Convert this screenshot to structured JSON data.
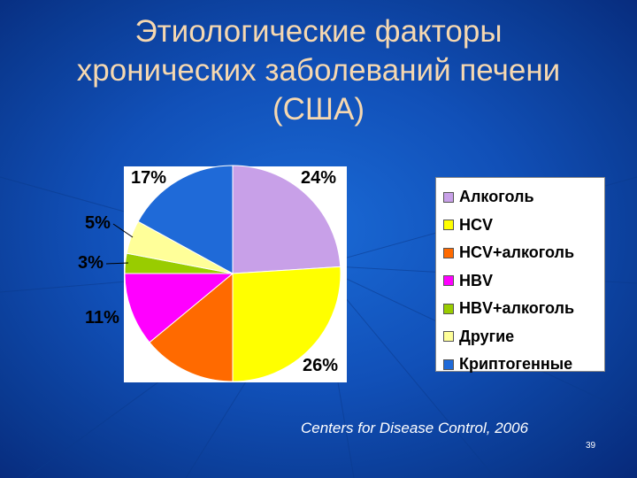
{
  "slide": {
    "title_lines": [
      "Этиологические факторы",
      "хронических заболеваний печени",
      "(США)"
    ],
    "source": "Centers for Disease Control, 2006",
    "page_number": "39"
  },
  "chart_data": {
    "type": "pie",
    "title": "",
    "categories": [
      "Алкоголь",
      "HCV",
      "HCV+алкоголь",
      "HBV",
      "HBV+алкоголь",
      "Другие",
      "Криптогенные"
    ],
    "values": [
      24,
      26,
      14,
      11,
      3,
      5,
      17
    ],
    "data_labels": [
      "24%",
      "26%",
      "",
      "11%",
      "3%",
      "5%",
      "17%"
    ],
    "colors": [
      "#c8a0e8",
      "#ffff00",
      "#ff6a00",
      "#ff00ff",
      "#99cc00",
      "#ffff99",
      "#1f6ad8"
    ],
    "legend_position": "right",
    "grid": false
  }
}
